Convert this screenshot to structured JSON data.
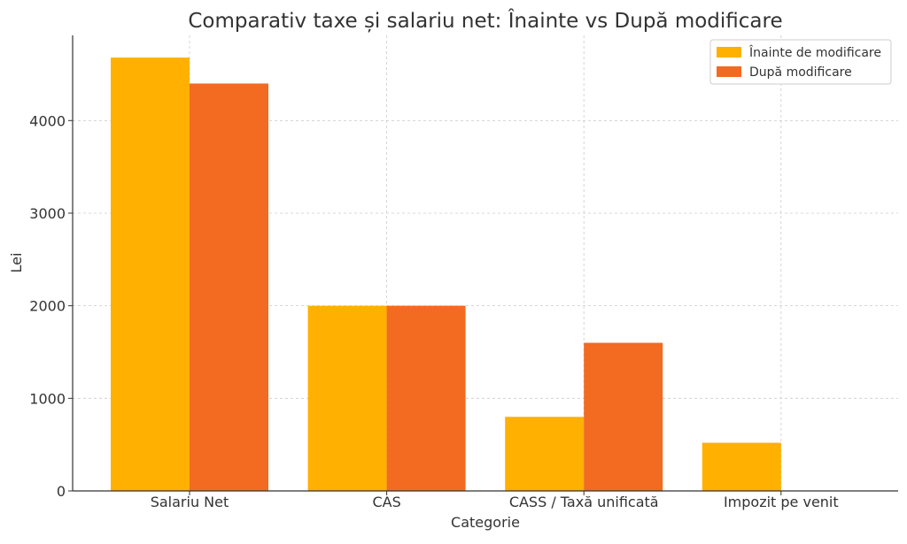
{
  "chart_data": {
    "type": "bar",
    "title": "Comparativ taxe și salariu net: Înainte vs După modificare",
    "xlabel": "Categorie",
    "ylabel": "Lei",
    "categories": [
      "Salariu Net",
      "CAS",
      "CASS / Taxă unificată",
      "Impozit pe venit"
    ],
    "series": [
      {
        "name": "Înainte de modificare",
        "values": [
          4680,
          2000,
          800,
          520
        ],
        "color": "#FFB000"
      },
      {
        "name": "După modificare",
        "values": [
          4400,
          2000,
          1600,
          0
        ],
        "color": "#F26B21"
      }
    ],
    "ylim": [
      0,
      4920
    ],
    "yticks": [
      0,
      1000,
      2000,
      3000,
      4000
    ],
    "ytick_labels": [
      "0",
      "1000",
      "2000",
      "3000",
      "4000"
    ],
    "grid": true,
    "legend_position": "top-right"
  }
}
